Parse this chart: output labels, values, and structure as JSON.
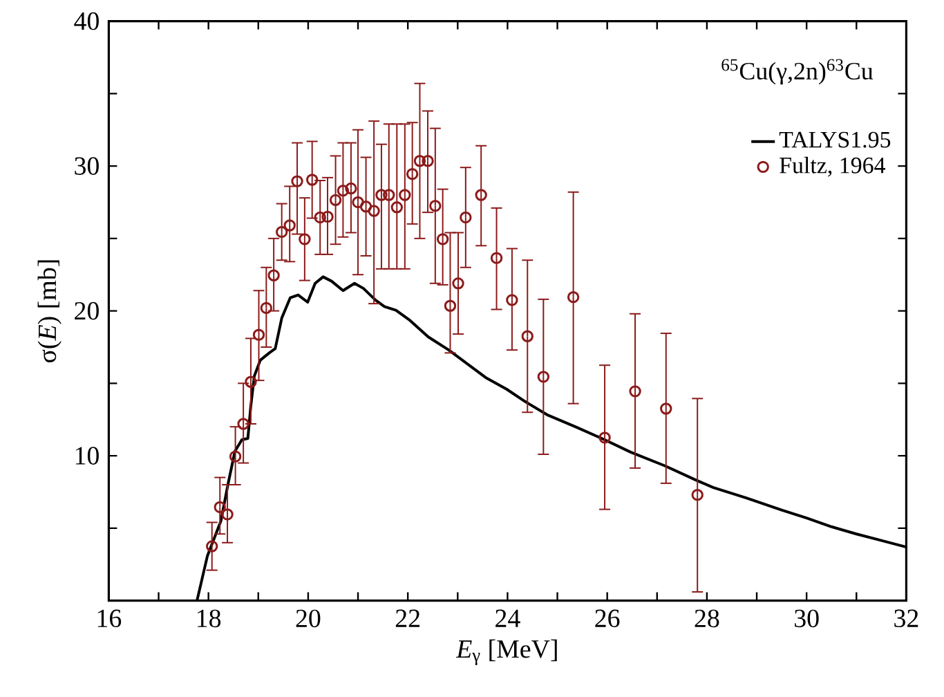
{
  "chart_data": {
    "type": "scatter",
    "xlabel": "*E*$_{γ}$ [MeV]",
    "ylabel": "σ(*E*)  [mb]",
    "annotations": [
      "$^{65}$Cu(γ,2n)$^{63}$Cu"
    ],
    "xlim": [
      16,
      32
    ],
    "ylim": [
      0,
      40
    ],
    "xticks": [
      16,
      {
        "value": 17,
        "label": null
      },
      18,
      {
        "value": 19,
        "label": null
      },
      20,
      {
        "value": 21,
        "label": null
      },
      22,
      {
        "value": 23,
        "label": null
      },
      24,
      {
        "value": 25,
        "label": null
      },
      26,
      {
        "value": 27,
        "label": null
      },
      28,
      {
        "value": 29,
        "label": null
      },
      30,
      {
        "value": 31,
        "label": null
      },
      32
    ],
    "yticks": [
      {
        "value": 5,
        "label": null
      },
      10,
      {
        "value": 15,
        "label": null
      },
      20,
      {
        "value": 25,
        "label": null
      },
      30,
      {
        "value": 35,
        "label": null
      },
      40
    ],
    "legend": "right",
    "grid": false,
    "series": [
      {
        "name": "TALYS1.95",
        "type": "line",
        "color": "#000000",
        "marker": "none",
        "line_style": "solid",
        "x": [
          17.77,
          17.98,
          18.25,
          18.39,
          18.53,
          18.67,
          18.79,
          18.85,
          18.92,
          19.04,
          19.22,
          19.34,
          19.47,
          19.64,
          19.8,
          19.99,
          20.14,
          20.3,
          20.47,
          20.7,
          20.93,
          21.11,
          21.35,
          21.53,
          21.76,
          22.04,
          22.41,
          22.82,
          23.56,
          23.98,
          24.35,
          24.81,
          25.36,
          25.92,
          26.47,
          27.16,
          27.76,
          28.13,
          28.78,
          29.5,
          30,
          30.5,
          31,
          31.5,
          32
        ],
        "values": [
          0,
          3.1,
          5.5,
          8.0,
          10.3,
          11.1,
          11.2,
          13.45,
          15.5,
          16.6,
          17.1,
          17.4,
          19.5,
          20.9,
          21.1,
          20.6,
          21.9,
          22.35,
          22.05,
          21.4,
          21.9,
          21.55,
          20.75,
          20.3,
          20.05,
          19.35,
          18.2,
          17.3,
          15.4,
          14.6,
          13.75,
          12.8,
          12.0,
          11.15,
          10.25,
          9.3,
          8.35,
          7.8,
          7.1,
          6.25,
          5.7,
          5.1,
          4.6,
          4.15,
          3.7
        ]
      },
      {
        "name": "Fultz, 1964",
        "color": "#8b1a1a",
        "marker": "circle",
        "x": [
          18.07,
          18.23,
          18.38,
          18.54,
          18.7,
          18.85,
          19.01,
          19.16,
          19.31,
          19.47,
          19.63,
          19.78,
          19.93,
          20.08,
          20.24,
          20.39,
          20.55,
          20.7,
          20.86,
          21.0,
          21.16,
          21.32,
          21.47,
          21.62,
          21.78,
          21.94,
          22.09,
          22.24,
          22.4,
          22.55,
          22.7,
          22.85,
          23.01,
          23.16,
          23.47,
          23.78,
          24.09,
          24.4,
          24.72,
          25.32,
          25.95,
          26.56,
          27.18,
          27.81
        ],
        "values": [
          3.75,
          6.45,
          5.95,
          9.95,
          12.2,
          15.1,
          18.35,
          20.2,
          22.45,
          25.45,
          25.9,
          28.95,
          24.95,
          29.05,
          26.45,
          26.5,
          27.65,
          28.3,
          28.45,
          27.5,
          27.2,
          26.9,
          28.0,
          28.0,
          27.15,
          28.0,
          29.45,
          30.35,
          30.35,
          27.25,
          24.95,
          20.35,
          21.9,
          26.45,
          28.0,
          23.65,
          20.75,
          18.25,
          15.45,
          20.95,
          11.25,
          14.45,
          13.25,
          7.3
        ],
        "errors": [
          [
            2.1,
            5.4
          ],
          [
            4.6,
            8.5
          ],
          [
            4.0,
            8.0
          ],
          [
            8.0,
            12.0
          ],
          [
            9.5,
            15.0
          ],
          [
            12.2,
            18.1
          ],
          [
            15.2,
            21.4
          ],
          [
            17.5,
            23.0
          ],
          [
            20.0,
            25.0
          ],
          [
            23.5,
            27.4
          ],
          [
            23.4,
            28.6
          ],
          [
            25.3,
            31.6
          ],
          [
            22.1,
            27.8
          ],
          [
            26.4,
            31.7
          ],
          [
            23.9,
            29.0
          ],
          [
            23.9,
            29.2
          ],
          [
            24.6,
            30.7
          ],
          [
            25.1,
            31.6
          ],
          [
            25.4,
            31.6
          ],
          [
            22.5,
            32.5
          ],
          [
            23.8,
            30.6
          ],
          [
            20.5,
            33.1
          ],
          [
            22.9,
            31.5
          ],
          [
            22.9,
            32.9
          ],
          [
            22.9,
            32.9
          ],
          [
            22.9,
            32.9
          ],
          [
            26.0,
            33.0
          ],
          [
            25.0,
            35.7
          ],
          [
            26.8,
            33.8
          ],
          [
            21.9,
            32.6
          ],
          [
            21.8,
            28.4
          ],
          [
            17.1,
            25.4
          ],
          [
            18.4,
            25.4
          ],
          [
            23.0,
            29.9
          ],
          [
            24.5,
            31.4
          ],
          [
            20.1,
            27.1
          ],
          [
            17.3,
            24.3
          ],
          [
            13.0,
            23.5
          ],
          [
            10.1,
            20.8
          ],
          [
            13.6,
            28.2
          ],
          [
            6.3,
            16.25
          ],
          [
            9.15,
            19.8
          ],
          [
            8.1,
            18.45
          ],
          [
            0.6,
            13.95
          ]
        ]
      }
    ]
  }
}
